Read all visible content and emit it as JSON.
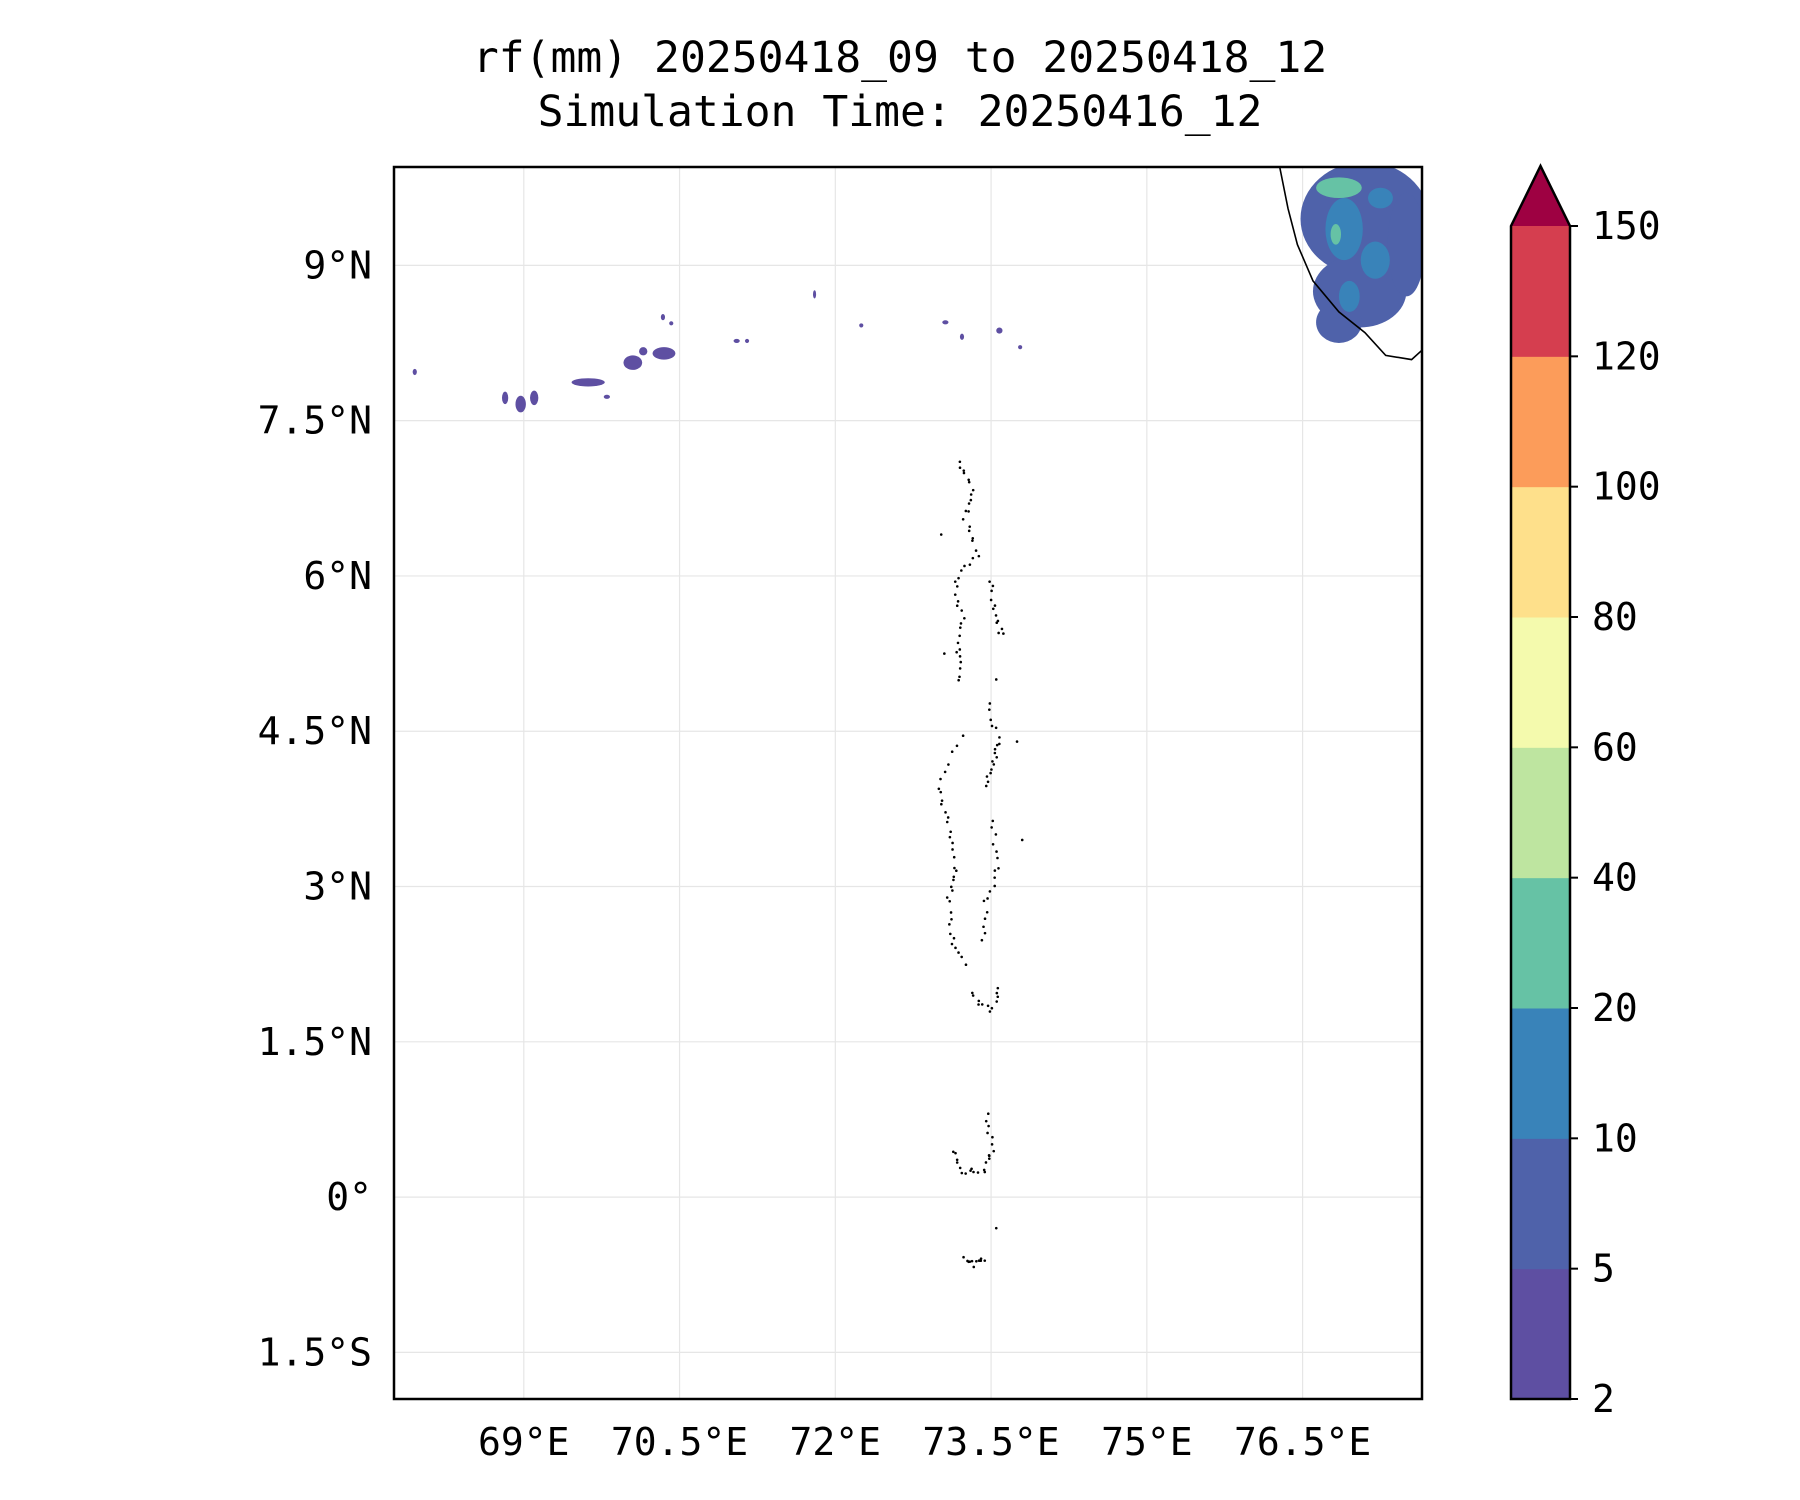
{
  "title": {
    "line1": "rf(mm) 20250418_09 to 20250418_12",
    "line2": "Simulation Time: 20250416_12"
  },
  "map": {
    "lon_range": [
      67.75,
      77.65
    ],
    "lat_range": [
      -1.95,
      9.95
    ],
    "lon_ticks": [
      {
        "value": 69.0,
        "label": "69°E"
      },
      {
        "value": 70.5,
        "label": "70.5°E"
      },
      {
        "value": 72.0,
        "label": "72°E"
      },
      {
        "value": 73.5,
        "label": "73.5°E"
      },
      {
        "value": 75.0,
        "label": "75°E"
      },
      {
        "value": 76.5,
        "label": "76.5°E"
      }
    ],
    "lat_ticks": [
      {
        "value": 9.0,
        "label": "9°N"
      },
      {
        "value": 7.5,
        "label": "7.5°N"
      },
      {
        "value": 6.0,
        "label": "6°N"
      },
      {
        "value": 4.5,
        "label": "4.5°N"
      },
      {
        "value": 3.0,
        "label": "3°N"
      },
      {
        "value": 1.5,
        "label": "1.5°N"
      },
      {
        "value": 0.0,
        "label": "0°"
      },
      {
        "value": -1.5,
        "label": "1.5°S"
      }
    ],
    "grid": true,
    "coastline_color": "#000000"
  },
  "colorbar": {
    "levels": [
      "2",
      "5",
      "10",
      "20",
      "40",
      "60",
      "80",
      "100",
      "120",
      "150"
    ],
    "colors": [
      "#5e4fa2",
      "#4f62aa",
      "#3983b9",
      "#66c2a5",
      "#bee5a0",
      "#f4faad",
      "#fee08b",
      "#fc9c5a",
      "#d53e4f"
    ],
    "extend_color": "#9e0142",
    "extend": "max"
  },
  "rainfall_patches": {
    "scattered_band": [
      {
        "lon": 67.95,
        "lat": 7.97,
        "rx": 0.02,
        "ry": 0.03,
        "level": 0
      },
      {
        "lon": 68.82,
        "lat": 7.72,
        "rx": 0.03,
        "ry": 0.06,
        "level": 0
      },
      {
        "lon": 68.97,
        "lat": 7.66,
        "rx": 0.05,
        "ry": 0.08,
        "level": 0
      },
      {
        "lon": 69.1,
        "lat": 7.72,
        "rx": 0.04,
        "ry": 0.07,
        "level": 0
      },
      {
        "lon": 69.62,
        "lat": 7.87,
        "rx": 0.16,
        "ry": 0.04,
        "level": 0
      },
      {
        "lon": 69.8,
        "lat": 7.73,
        "rx": 0.03,
        "ry": 0.02,
        "level": 0
      },
      {
        "lon": 70.05,
        "lat": 8.06,
        "rx": 0.09,
        "ry": 0.07,
        "level": 0
      },
      {
        "lon": 70.15,
        "lat": 8.17,
        "rx": 0.04,
        "ry": 0.04,
        "level": 0
      },
      {
        "lon": 70.35,
        "lat": 8.15,
        "rx": 0.11,
        "ry": 0.06,
        "level": 0
      },
      {
        "lon": 70.34,
        "lat": 8.5,
        "rx": 0.02,
        "ry": 0.03,
        "level": 0
      },
      {
        "lon": 70.42,
        "lat": 8.44,
        "rx": 0.02,
        "ry": 0.02,
        "level": 0
      },
      {
        "lon": 71.05,
        "lat": 8.27,
        "rx": 0.03,
        "ry": 0.02,
        "level": 0
      },
      {
        "lon": 71.15,
        "lat": 8.27,
        "rx": 0.02,
        "ry": 0.02,
        "level": 0
      },
      {
        "lon": 71.8,
        "lat": 8.72,
        "rx": 0.015,
        "ry": 0.04,
        "level": 0
      },
      {
        "lon": 72.25,
        "lat": 8.42,
        "rx": 0.02,
        "ry": 0.02,
        "level": 0
      },
      {
        "lon": 73.06,
        "lat": 8.45,
        "rx": 0.03,
        "ry": 0.02,
        "level": 0
      },
      {
        "lon": 73.22,
        "lat": 8.31,
        "rx": 0.02,
        "ry": 0.03,
        "level": 0
      },
      {
        "lon": 73.58,
        "lat": 8.37,
        "rx": 0.03,
        "ry": 0.03,
        "level": 0
      },
      {
        "lon": 73.78,
        "lat": 8.21,
        "rx": 0.02,
        "ry": 0.02,
        "level": 0
      }
    ],
    "kerala_mass": [
      {
        "lon": 77.1,
        "lat": 9.45,
        "rx": 0.62,
        "ry": 0.55,
        "level": 1
      },
      {
        "lon": 77.05,
        "lat": 8.75,
        "rx": 0.45,
        "ry": 0.35,
        "level": 1
      },
      {
        "lon": 76.85,
        "lat": 8.45,
        "rx": 0.22,
        "ry": 0.2,
        "level": 1
      },
      {
        "lon": 77.5,
        "lat": 9.2,
        "rx": 0.18,
        "ry": 0.5,
        "level": 1
      },
      {
        "lon": 76.9,
        "lat": 9.35,
        "rx": 0.18,
        "ry": 0.3,
        "level": 2
      },
      {
        "lon": 77.2,
        "lat": 9.05,
        "rx": 0.14,
        "ry": 0.18,
        "level": 2
      },
      {
        "lon": 76.95,
        "lat": 8.7,
        "rx": 0.1,
        "ry": 0.15,
        "level": 2
      },
      {
        "lon": 77.25,
        "lat": 9.65,
        "rx": 0.12,
        "ry": 0.1,
        "level": 2
      },
      {
        "lon": 76.85,
        "lat": 9.75,
        "rx": 0.22,
        "ry": 0.1,
        "level": 3
      },
      {
        "lon": 76.82,
        "lat": 9.3,
        "rx": 0.05,
        "ry": 0.1,
        "level": 3
      }
    ]
  }
}
